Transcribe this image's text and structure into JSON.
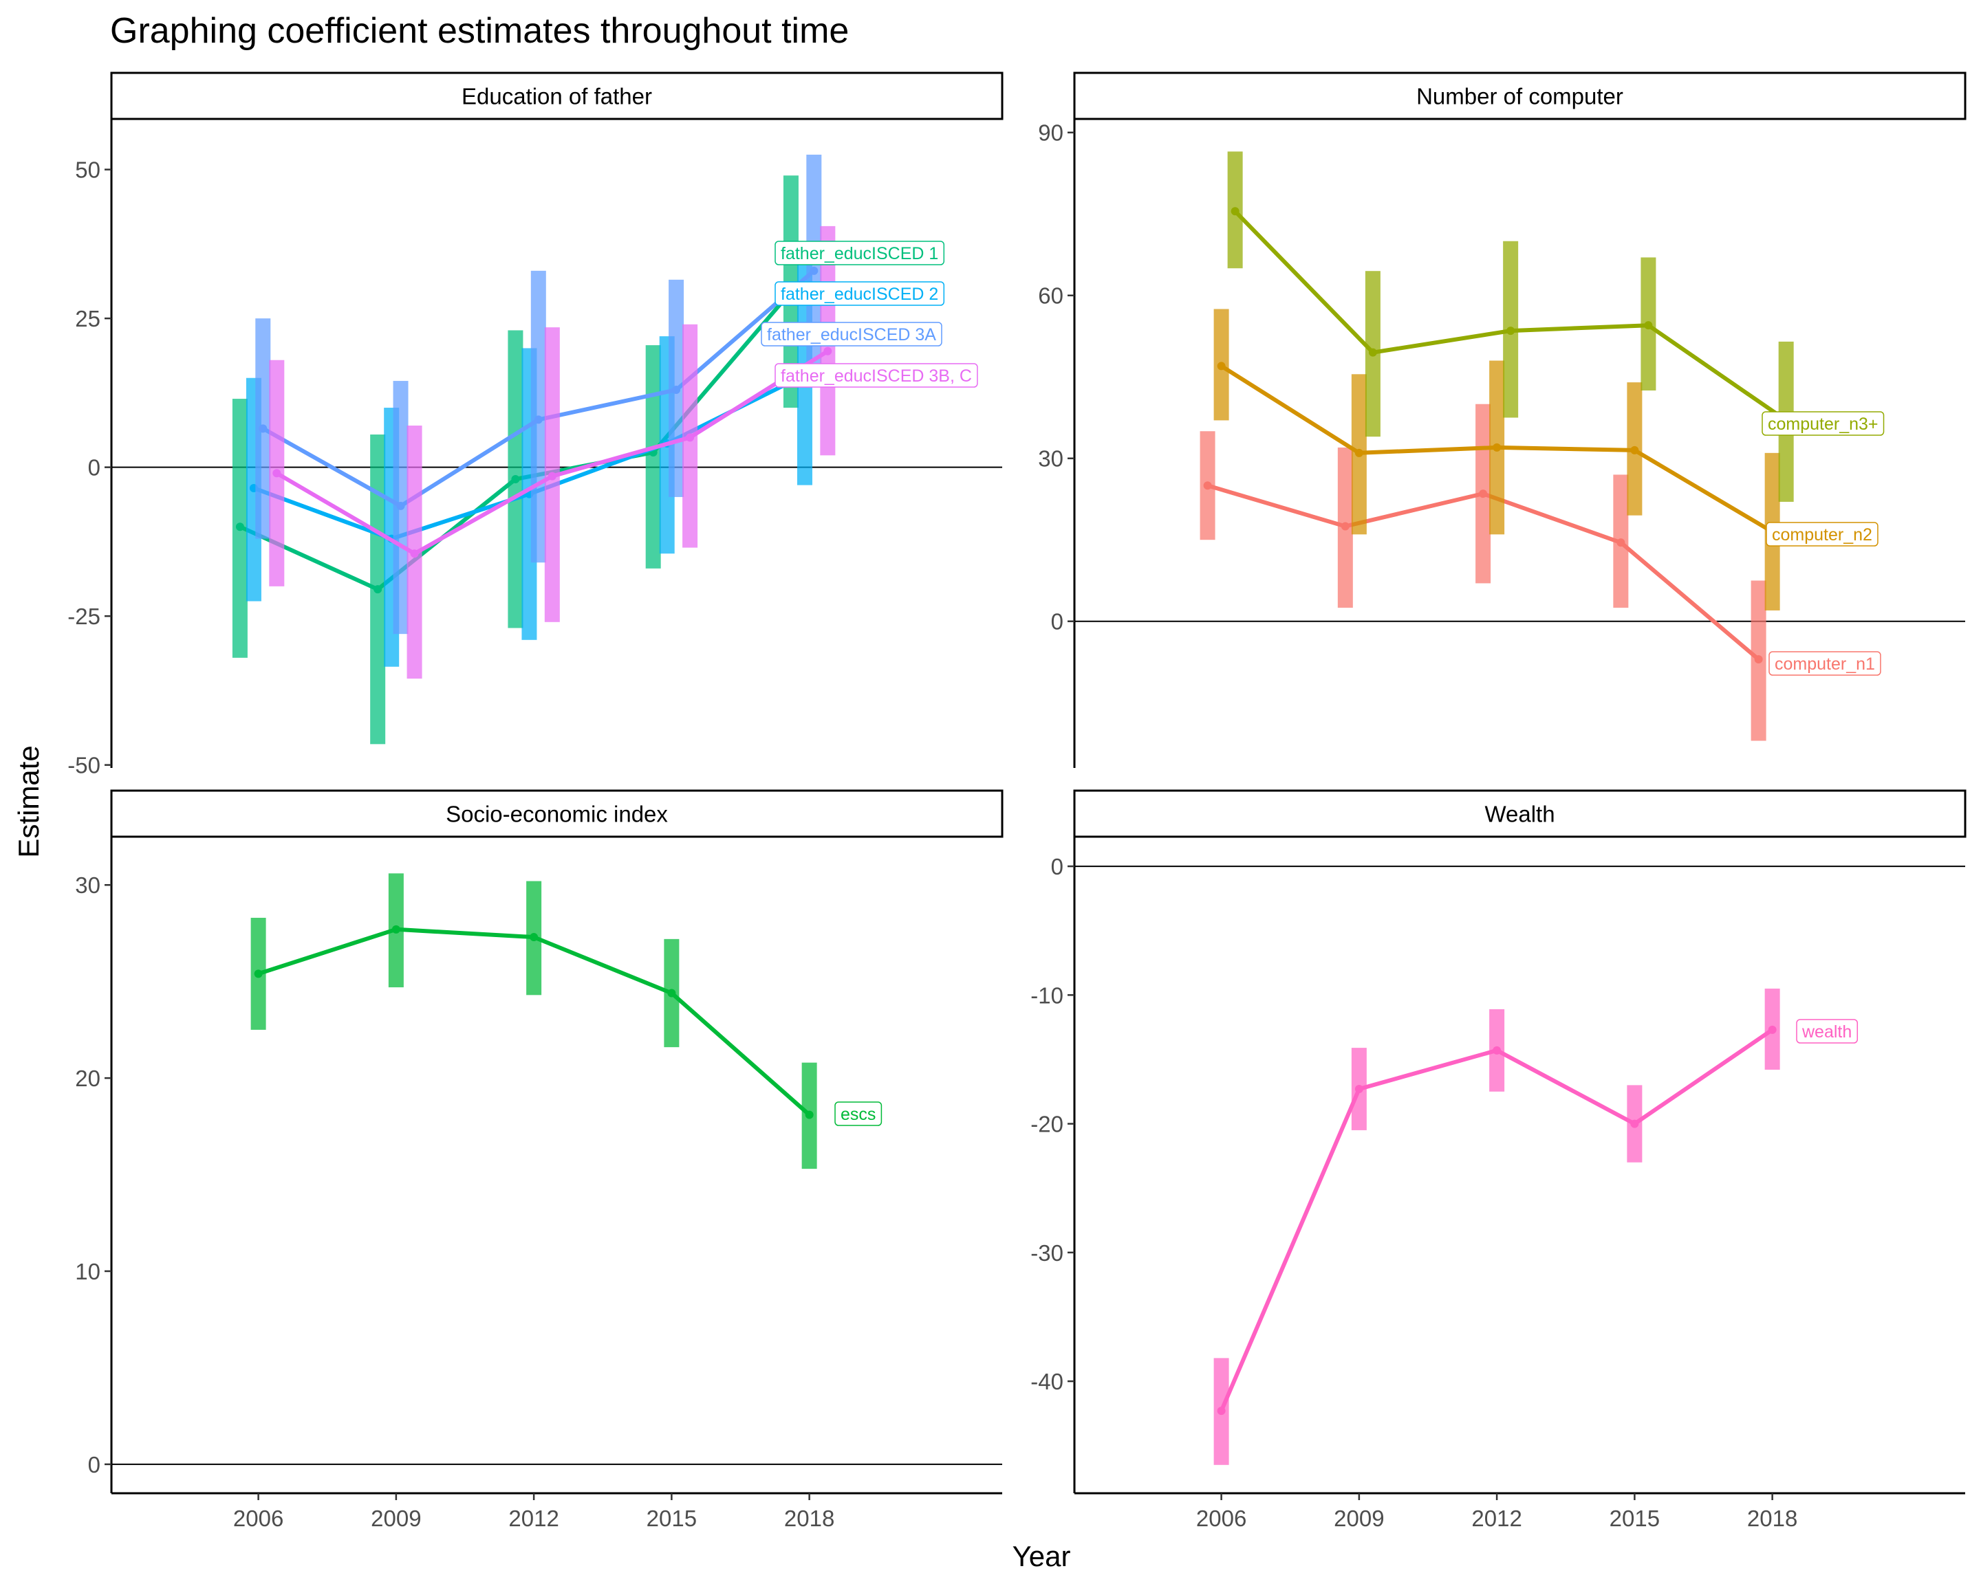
{
  "title": "Graphing coefficient estimates throughout time",
  "xlabel": "Year",
  "ylabel": "Estimate",
  "chart_data": [
    {
      "type": "line",
      "panel": "Education of father",
      "x": [
        2006,
        2009,
        2012,
        2015,
        2018
      ],
      "xlim": [
        2002.8,
        2022.2
      ],
      "ylim": [
        -50.5,
        58.5
      ],
      "yticks": [
        -50,
        -25,
        0,
        25,
        50
      ],
      "ytick_labels": [
        "-50",
        "-25",
        "0",
        "25",
        "50"
      ],
      "hline": 0,
      "series": [
        {
          "name": "father_educISCED 1",
          "color": "#00BF7D",
          "dodge": -0.4,
          "values": [
            -10,
            -20.5,
            -2,
            2.5,
            29.5
          ],
          "lower": [
            -32,
            -46.5,
            -27,
            -17,
            10
          ],
          "upper": [
            11.5,
            5.5,
            23,
            20.5,
            49
          ]
        },
        {
          "name": "father_educISCED 2",
          "color": "#00B0F6",
          "dodge": -0.1,
          "values": [
            -3.5,
            -12,
            -4.5,
            4,
            15.5
          ],
          "lower": [
            -22.5,
            -33.5,
            -29,
            -14.5,
            -3
          ],
          "upper": [
            15,
            10,
            20,
            22,
            34.5
          ]
        },
        {
          "name": "father_educISCED 3A",
          "color": "#619CFF",
          "dodge": 0.1,
          "values": [
            6.5,
            -6.5,
            8,
            13,
            33
          ],
          "lower": [
            -12,
            -28,
            -16,
            -5,
            13.5
          ],
          "upper": [
            25,
            14.5,
            33,
            31.5,
            52.5
          ]
        },
        {
          "name": "father_educISCED 3B, C",
          "color": "#E76BF3",
          "dodge": 0.4,
          "values": [
            -1,
            -14.5,
            -1.5,
            5,
            19.5
          ],
          "lower": [
            -20,
            -35.5,
            -26,
            -13.5,
            2
          ],
          "upper": [
            18,
            7,
            23.5,
            24,
            40.5
          ]
        }
      ]
    },
    {
      "type": "line",
      "panel": "Number of computer",
      "x": [
        2006,
        2009,
        2012,
        2015,
        2018
      ],
      "xlim": [
        2002.8,
        2022.2
      ],
      "ylim": [
        -27,
        92.5
      ],
      "yticks": [
        0,
        30,
        60,
        90
      ],
      "ytick_labels": [
        "0",
        "30",
        "60",
        "90"
      ],
      "hline": 0,
      "series": [
        {
          "name": "computer_n1",
          "color": "#F8766D",
          "dodge": -0.3,
          "values": [
            25,
            17.5,
            23.5,
            14.5,
            -7
          ],
          "lower": [
            15,
            2.5,
            7,
            2.5,
            -22
          ],
          "upper": [
            35,
            32,
            40,
            27,
            7.5
          ]
        },
        {
          "name": "computer_n2",
          "color": "#D39200",
          "dodge": 0,
          "values": [
            47,
            31,
            32,
            31.5,
            16.5
          ],
          "lower": [
            37,
            16,
            16,
            19.5,
            2
          ],
          "upper": [
            57.5,
            45.5,
            48,
            44,
            31
          ]
        },
        {
          "name": "computer_n3+",
          "color": "#93AA00",
          "dodge": 0.3,
          "values": [
            75.5,
            49.5,
            53.5,
            54.5,
            37
          ],
          "lower": [
            65,
            34,
            37.5,
            42.5,
            22
          ],
          "upper": [
            86.5,
            64.5,
            70,
            67,
            51.5
          ]
        }
      ]
    },
    {
      "type": "line",
      "panel": "Socio-economic index",
      "x": [
        2006,
        2009,
        2012,
        2015,
        2018
      ],
      "xlim": [
        2002.8,
        2022.2
      ],
      "ylim": [
        -1.5,
        32.5
      ],
      "yticks": [
        0,
        10,
        20,
        30
      ],
      "ytick_labels": [
        "0",
        "10",
        "20",
        "30"
      ],
      "xticks": [
        2006,
        2009,
        2012,
        2015,
        2018
      ],
      "xtick_labels": [
        "2006",
        "2009",
        "2012",
        "2015",
        "2018"
      ],
      "hline": 0,
      "series": [
        {
          "name": "escs",
          "color": "#00BA38",
          "dodge": 0,
          "values": [
            25.4,
            27.7,
            27.3,
            24.4,
            18.1
          ],
          "lower": [
            22.5,
            24.7,
            24.3,
            21.6,
            15.3
          ],
          "upper": [
            28.3,
            30.6,
            30.2,
            27.2,
            20.8
          ]
        }
      ]
    },
    {
      "type": "line",
      "panel": "Wealth",
      "x": [
        2006,
        2009,
        2012,
        2015,
        2018
      ],
      "xlim": [
        2002.8,
        2022.2
      ],
      "ylim": [
        -48.7,
        2.3
      ],
      "yticks": [
        -40,
        -30,
        -20,
        -10,
        0
      ],
      "ytick_labels": [
        "-40",
        "-30",
        "-20",
        "-10",
        "0"
      ],
      "xticks": [
        2006,
        2009,
        2012,
        2015,
        2018
      ],
      "xtick_labels": [
        "2006",
        "2009",
        "2012",
        "2015",
        "2018"
      ],
      "hline": 0,
      "series": [
        {
          "name": "wealth",
          "color": "#FF61C3",
          "dodge": 0,
          "values": [
            -42.3,
            -17.3,
            -14.3,
            -20,
            -12.7
          ],
          "lower": [
            -46.5,
            -20.5,
            -17.5,
            -23,
            -15.8
          ],
          "upper": [
            -38.2,
            -14.1,
            -11.1,
            -17,
            -9.5
          ]
        }
      ]
    }
  ]
}
